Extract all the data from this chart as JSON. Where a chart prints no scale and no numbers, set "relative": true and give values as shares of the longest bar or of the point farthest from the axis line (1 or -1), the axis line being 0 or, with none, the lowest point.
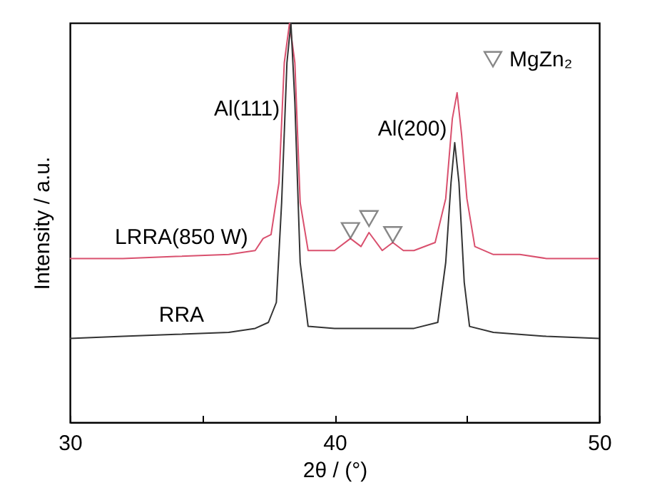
{
  "chart_data": {
    "type": "line",
    "relative": true,
    "xlabel": "2θ / (°)",
    "ylabel": "Intensity / a.u.",
    "xlim": [
      30,
      50
    ],
    "xticks": [
      30,
      {
        "value": 35,
        "label": null
      },
      40,
      {
        "value": 45,
        "label": null
      },
      50
    ],
    "legend": "top right",
    "grid": false,
    "annotations": [
      "Al(111)",
      "Al(200)"
    ],
    "series": [
      {
        "name": "LRRA(850 W)",
        "color": "#d9506e",
        "x": [
          30,
          32,
          34,
          36,
          37,
          37.3,
          37.6,
          37.9,
          38.1,
          38.3,
          38.5,
          38.7,
          39,
          40,
          40.6,
          41,
          41.3,
          41.8,
          42.2,
          42.6,
          43,
          43.8,
          44.2,
          44.45,
          44.63,
          44.8,
          45.0,
          45.3,
          46,
          47,
          48,
          50
        ],
        "values": [
          0.41,
          0.41,
          0.415,
          0.42,
          0.43,
          0.46,
          0.47,
          0.6,
          0.9,
          1,
          0.9,
          0.55,
          0.43,
          0.43,
          0.46,
          0.44,
          0.475,
          0.43,
          0.45,
          0.43,
          0.43,
          0.45,
          0.56,
          0.76,
          0.825,
          0.72,
          0.56,
          0.44,
          0.42,
          0.42,
          0.41,
          0.41
        ]
      },
      {
        "name": "RRA",
        "color": "#333333",
        "x": [
          30,
          32,
          34,
          36,
          37,
          37.5,
          37.8,
          38.0,
          38.2,
          38.35,
          38.5,
          38.7,
          39,
          40,
          41,
          42,
          43,
          43.9,
          44.2,
          44.4,
          44.54,
          44.7,
          44.9,
          45.1,
          46,
          48,
          50
        ],
        "values": [
          0.21,
          0.215,
          0.22,
          0.225,
          0.235,
          0.25,
          0.3,
          0.55,
          0.9,
          1,
          0.8,
          0.4,
          0.24,
          0.235,
          0.235,
          0.235,
          0.235,
          0.25,
          0.4,
          0.6,
          0.7,
          0.6,
          0.35,
          0.24,
          0.225,
          0.215,
          0.21
        ]
      },
      {
        "name": "MgZn₂",
        "type": "scatter",
        "marker": "triangle",
        "color": "#555555",
        "x": [
          40.6,
          41.3,
          42.2
        ],
        "values": [
          0.48,
          0.51,
          0.47
        ]
      }
    ]
  }
}
